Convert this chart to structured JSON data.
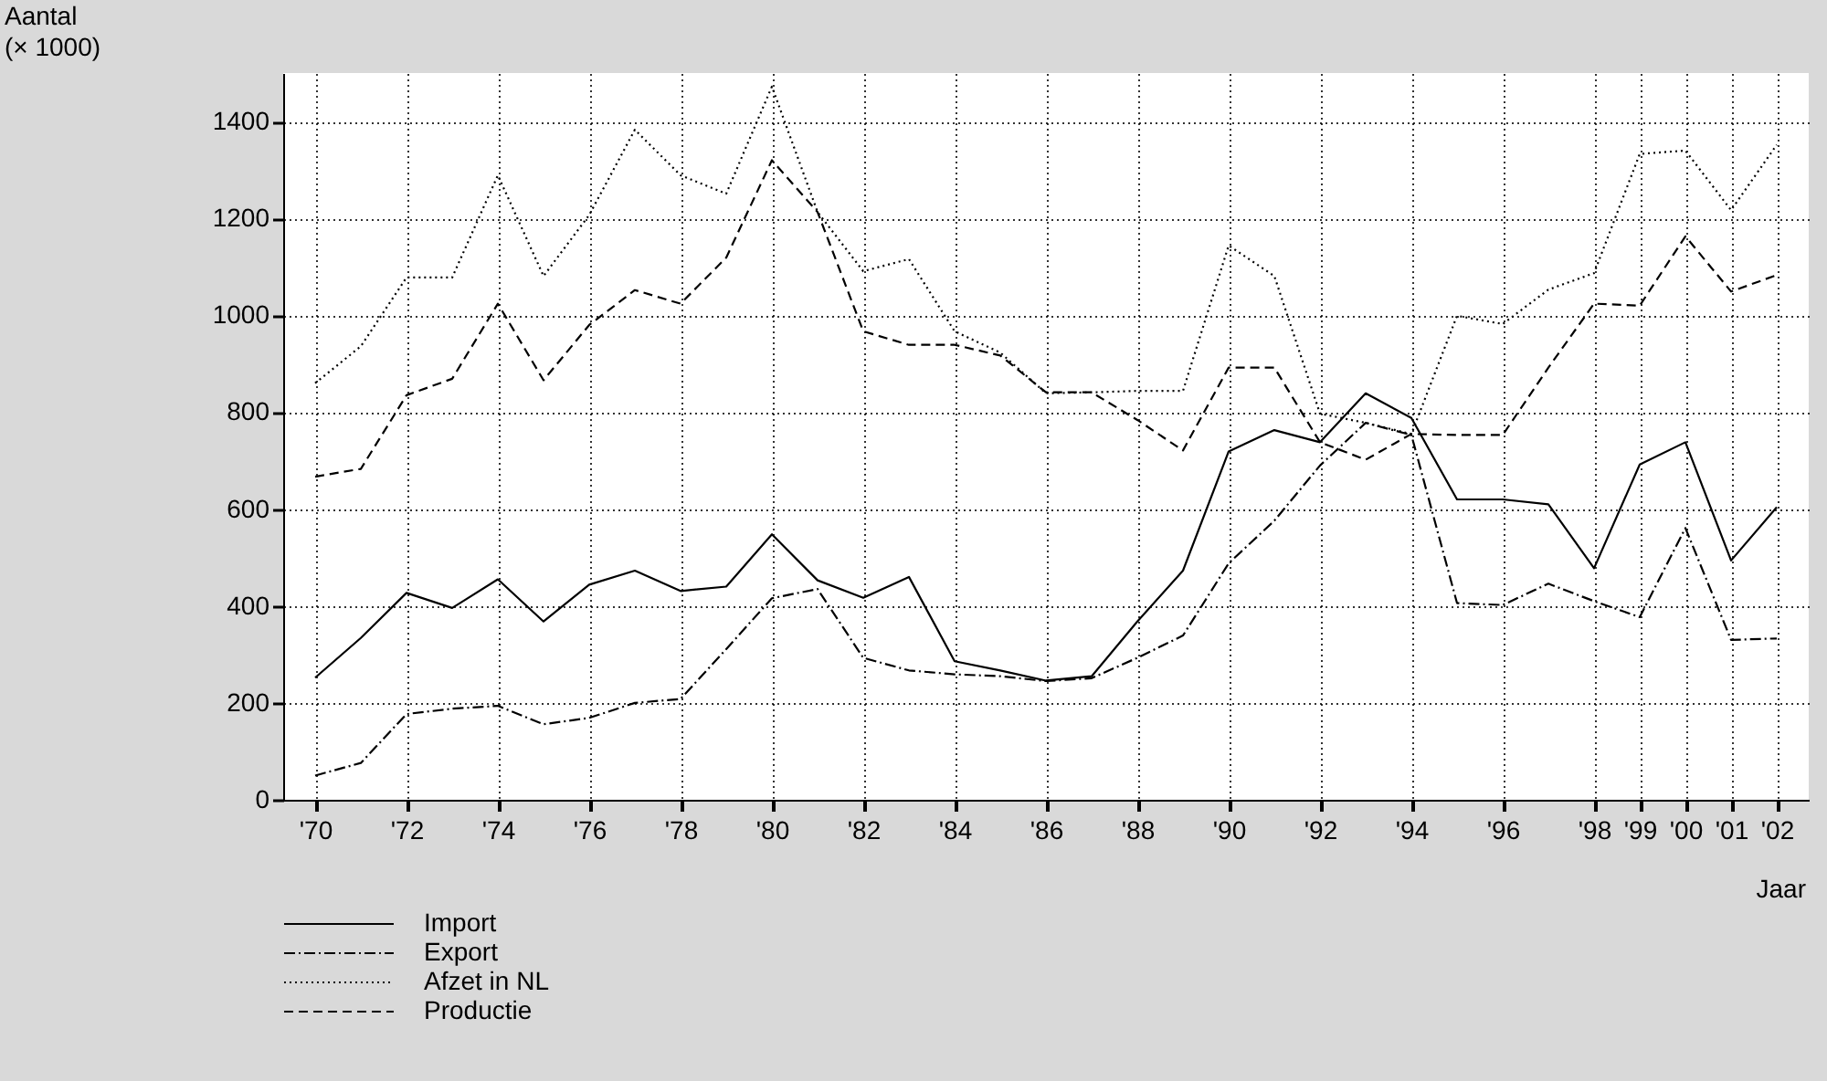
{
  "chart_data": {
    "type": "line",
    "ylabel": "Aantal\n(× 1000)",
    "xlabel": "Jaar",
    "categories": [
      "'70",
      null,
      "'72",
      null,
      "'74",
      null,
      "'76",
      null,
      "'78",
      null,
      "'80",
      null,
      "'82",
      null,
      "'84",
      null,
      "'86",
      null,
      "'88",
      null,
      "'90",
      null,
      "'92",
      null,
      "'94",
      null,
      "'96",
      null,
      "'98",
      "'99",
      "'00",
      "'01",
      "'02"
    ],
    "series": [
      {
        "name": "Import",
        "color": "#000000",
        "line_style": "solid",
        "values": [
          252,
          334,
          427,
          396,
          455,
          368,
          444,
          473,
          431,
          440,
          548,
          453,
          417,
          460,
          286,
          267,
          246,
          255,
          368,
          473,
          719,
          763,
          738,
          839,
          788,
          620,
          620,
          610,
          478,
          692,
          738,
          494,
          604
        ]
      },
      {
        "name": "Export",
        "color": "#000000",
        "line_style": "dashdot",
        "values": [
          50,
          76,
          177,
          188,
          194,
          156,
          169,
          200,
          208,
          311,
          416,
          435,
          293,
          267,
          259,
          255,
          245,
          251,
          293,
          339,
          488,
          576,
          690,
          778,
          753,
          406,
          402,
          446,
          410,
          377,
          561,
          330,
          333
        ]
      },
      {
        "name": "Afzet in NL",
        "color": "#000000",
        "line_style": "dotted",
        "values": [
          860,
          936,
          1078,
          1078,
          1289,
          1081,
          1207,
          1383,
          1289,
          1251,
          1472,
          1213,
          1091,
          1116,
          967,
          923,
          839,
          841,
          844,
          844,
          1144,
          1081,
          797,
          778,
          755,
          999,
          982,
          1053,
          1087,
          1333,
          1340,
          1217,
          1352
        ]
      },
      {
        "name": "Productie",
        "color": "#000000",
        "line_style": "dashed",
        "values": [
          667,
          683,
          835,
          869,
          1024,
          866,
          980,
          1052,
          1024,
          1119,
          1320,
          1213,
          967,
          939,
          939,
          917,
          841,
          841,
          784,
          721,
          892,
          892,
          738,
          702,
          755,
          753,
          753,
          892,
          1024,
          1020,
          1163,
          1049,
          1083
        ]
      }
    ],
    "ylim": [
      0,
      1500
    ],
    "yticks": [
      0,
      200,
      400,
      600,
      800,
      1000,
      1200,
      1400
    ],
    "grid": true,
    "legend": "bottom left"
  }
}
